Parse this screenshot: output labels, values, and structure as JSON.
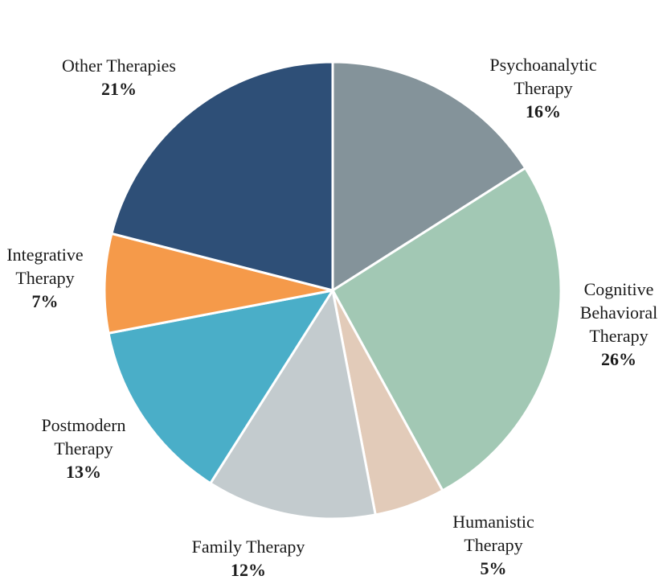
{
  "chart_data": {
    "type": "pie",
    "title": "",
    "legend": "none",
    "slices": [
      {
        "label_lines": [
          "Psychoanalytic",
          "Therapy"
        ],
        "value": 16,
        "value_label": "16%",
        "color": "#84939a"
      },
      {
        "label_lines": [
          "Cognitive",
          "Behavioral",
          "Therapy"
        ],
        "value": 26,
        "value_label": "26%",
        "color": "#a2c8b4"
      },
      {
        "label_lines": [
          "Humanistic",
          "Therapy"
        ],
        "value": 5,
        "value_label": "5%",
        "color": "#e2cbb9"
      },
      {
        "label_lines": [
          "Family Therapy"
        ],
        "value": 12,
        "value_label": "12%",
        "color": "#c3cbce"
      },
      {
        "label_lines": [
          "Postmodern",
          "Therapy"
        ],
        "value": 13,
        "value_label": "13%",
        "color": "#4aaec8"
      },
      {
        "label_lines": [
          "Integrative",
          "Therapy"
        ],
        "value": 7,
        "value_label": "7%",
        "color": "#f59a4a"
      },
      {
        "label_lines": [
          "Other Therapies"
        ],
        "value": 21,
        "value_label": "21%",
        "color": "#2e4f77"
      }
    ]
  }
}
